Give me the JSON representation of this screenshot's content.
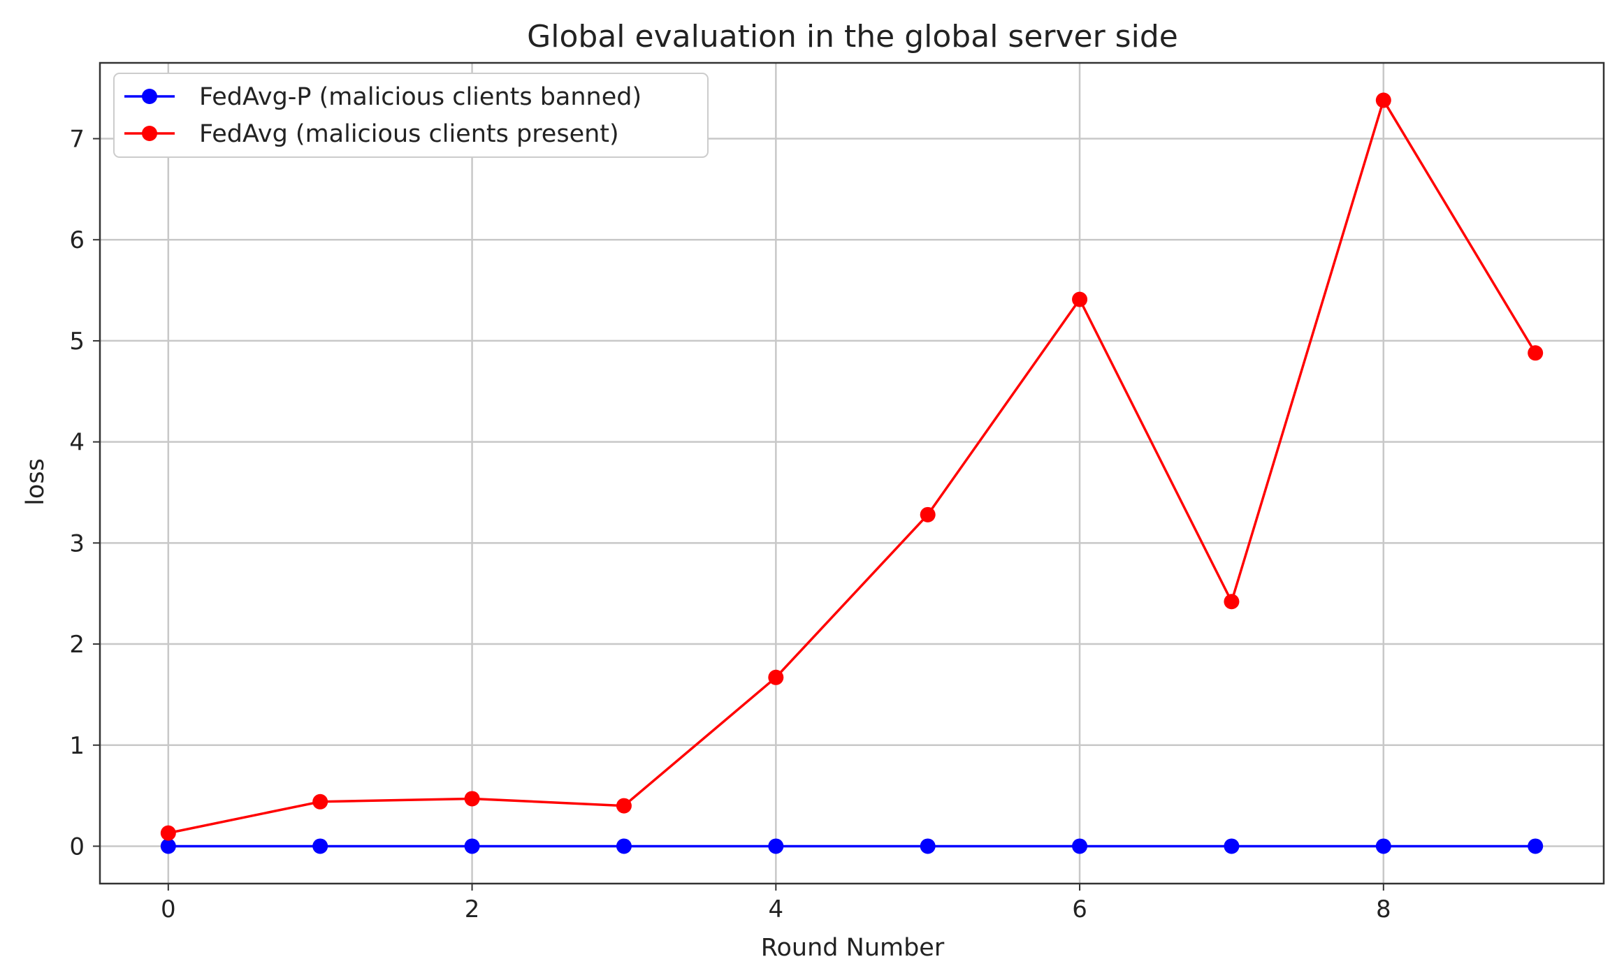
{
  "chart_data": {
    "type": "line",
    "title": "Global evaluation in the global server side",
    "xlabel": "Round Number",
    "ylabel": "loss",
    "x": [
      0,
      1,
      2,
      3,
      4,
      5,
      6,
      7,
      8,
      9
    ],
    "xlim": [
      -0.45,
      9.45
    ],
    "ylim": [
      -0.37,
      7.75
    ],
    "xticks": [
      0,
      2,
      4,
      6,
      8
    ],
    "yticks": [
      0,
      1,
      2,
      3,
      4,
      5,
      6,
      7
    ],
    "grid": true,
    "legend_position": "top-left",
    "series": [
      {
        "name": "FedAvg-P (malicious clients banned)",
        "color": "#0000ff",
        "marker": "circle",
        "values": [
          0,
          0,
          0,
          0,
          0,
          0,
          0,
          0,
          0,
          0
        ]
      },
      {
        "name": "FedAvg (malicious clients present)",
        "color": "#ff0000",
        "marker": "circle",
        "values": [
          0.13,
          0.44,
          0.47,
          0.4,
          1.67,
          3.28,
          5.41,
          2.42,
          7.38,
          4.88
        ]
      }
    ]
  }
}
